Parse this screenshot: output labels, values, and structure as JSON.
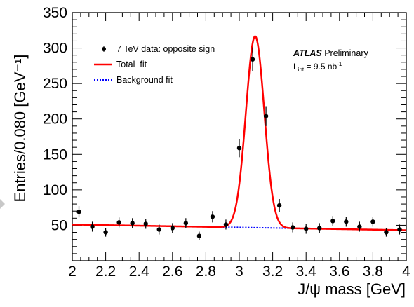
{
  "chart_data": {
    "type": "scatter",
    "xlabel": "J/ψ mass [GeV]",
    "ylabel": "Entries/0.080 [GeV⁻¹]",
    "xlim": [
      2,
      4
    ],
    "ylim": [
      0,
      350
    ],
    "x_ticks": [
      2,
      2.2,
      2.4,
      2.6,
      2.8,
      3,
      3.2,
      3.4,
      3.6,
      3.8,
      4
    ],
    "x_tick_labels": [
      "2",
      "2.2",
      "2.4",
      "2.6",
      "2.8",
      "3",
      "3.2",
      "3.4",
      "3.6",
      "3.8",
      "4"
    ],
    "y_ticks": [
      50,
      100,
      150,
      200,
      250,
      300,
      350
    ],
    "y_tick_labels": [
      "50",
      "100",
      "150",
      "200",
      "250",
      "300",
      "350"
    ],
    "legend_position": "top-left",
    "series": [
      {
        "name": "7 TeV data: opposite sign",
        "style": "points-with-errors",
        "color": "#000000",
        "x": [
          2.04,
          2.12,
          2.2,
          2.28,
          2.36,
          2.44,
          2.52,
          2.6,
          2.68,
          2.76,
          2.84,
          2.92,
          3.0,
          3.08,
          3.16,
          3.24,
          3.32,
          3.4,
          3.48,
          3.56,
          3.64,
          3.72,
          3.8,
          3.88,
          3.96
        ],
        "y": [
          69,
          48,
          40,
          54,
          53,
          52,
          44,
          46,
          53,
          35,
          62,
          51,
          159,
          284,
          204,
          78,
          47,
          45,
          46,
          56,
          55,
          48,
          55,
          40,
          44
        ],
        "yerr": [
          8,
          7,
          6,
          7,
          7,
          7,
          7,
          7,
          7,
          6,
          8,
          7,
          13,
          17,
          14,
          9,
          7,
          7,
          7,
          7,
          7,
          7,
          7,
          6,
          7
        ]
      },
      {
        "name": "Total  fit",
        "style": "line",
        "color": "#ff0000",
        "model": {
          "background": {
            "a": 51,
            "b": -4
          },
          "peak": {
            "mean": 3.095,
            "sigma": 0.055,
            "amplitude": 270
          }
        }
      },
      {
        "name": "Background fit",
        "style": "dotted-line",
        "color": "#0000ff",
        "model": {
          "background": {
            "a": 51,
            "b": -4
          }
        },
        "x_range": [
          2.8,
          3.4
        ]
      }
    ],
    "annotations": {
      "experiment": "ATLAS",
      "status": " Preliminary",
      "luminosity_symbol": "L",
      "luminosity_sub": "int",
      "luminosity_value": " = 9.5 nb",
      "luminosity_exp": "-1"
    }
  }
}
